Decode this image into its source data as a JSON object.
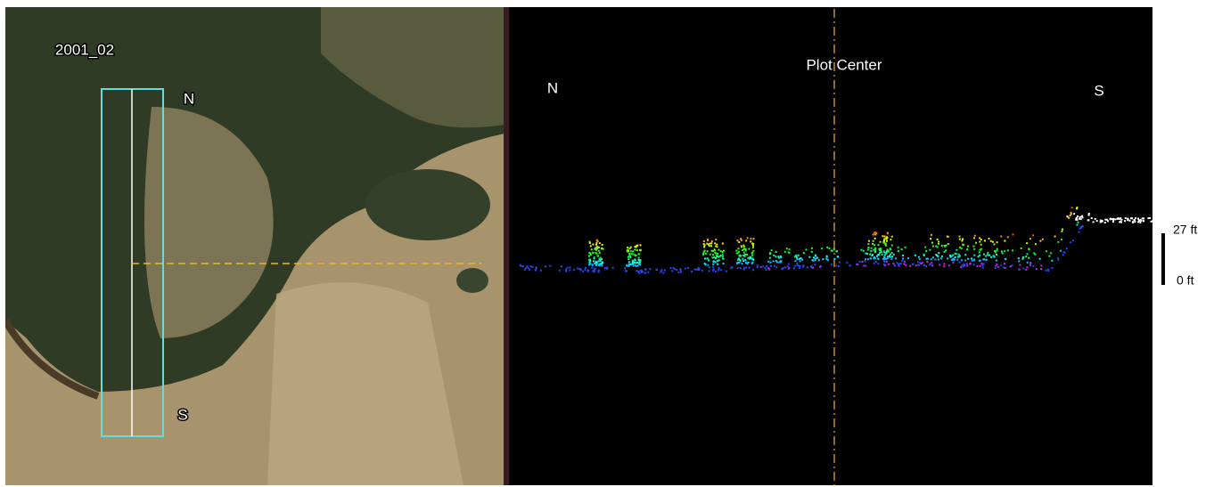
{
  "left_panel": {
    "plot_id": "2001_02",
    "north_label": "N",
    "south_label": "S"
  },
  "right_panel": {
    "title": "Plot Center",
    "north_label": "N",
    "south_label": "S"
  },
  "scale": {
    "top_label": "27 ft",
    "bottom_label": "0 ft"
  }
}
